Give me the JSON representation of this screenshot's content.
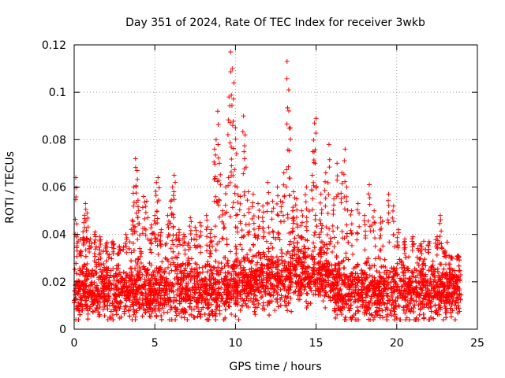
{
  "chart_data": {
    "type": "scatter",
    "title": "Day 351 of 2024, Rate Of TEC Index for receiver 3wkb",
    "xlabel": "GPS time / hours",
    "ylabel": "ROTI / TECUs",
    "xlim": [
      0,
      25
    ],
    "ylim": [
      0,
      0.12
    ],
    "xticks": [
      0,
      5,
      10,
      15,
      20,
      25
    ],
    "xtick_labels": [
      "0",
      "5",
      "10",
      "15",
      "20",
      "25"
    ],
    "yticks": [
      0,
      0.02,
      0.04,
      0.06,
      0.08,
      0.1,
      0.12
    ],
    "ytick_labels": [
      "0",
      "0.02",
      "0.04",
      "0.06",
      "0.08",
      "0.1",
      "0.12"
    ],
    "grid": true,
    "marker": "plus",
    "color": "#ff0000",
    "series": [
      {
        "points": [
          [
            0.1,
            0.064
          ],
          [
            0.2,
            0.04
          ],
          [
            0.4,
            0.033
          ],
          [
            0.6,
            0.045
          ],
          [
            0.7,
            0.053
          ],
          [
            0.8,
            0.049
          ],
          [
            1.0,
            0.038
          ],
          [
            1.3,
            0.041
          ],
          [
            1.6,
            0.039
          ],
          [
            2.0,
            0.036
          ],
          [
            2.4,
            0.037
          ],
          [
            2.8,
            0.035
          ],
          [
            3.2,
            0.04
          ],
          [
            3.6,
            0.046
          ],
          [
            3.7,
            0.06
          ],
          [
            3.8,
            0.072
          ],
          [
            3.9,
            0.067
          ],
          [
            4.0,
            0.05
          ],
          [
            4.3,
            0.056
          ],
          [
            4.5,
            0.054
          ],
          [
            4.8,
            0.044
          ],
          [
            5.0,
            0.048
          ],
          [
            5.1,
            0.062
          ],
          [
            5.2,
            0.064
          ],
          [
            5.4,
            0.042
          ],
          [
            5.8,
            0.048
          ],
          [
            6.0,
            0.054
          ],
          [
            6.1,
            0.06
          ],
          [
            6.2,
            0.065
          ],
          [
            6.5,
            0.042
          ],
          [
            6.8,
            0.04
          ],
          [
            7.2,
            0.047
          ],
          [
            7.5,
            0.043
          ],
          [
            7.8,
            0.045
          ],
          [
            8.2,
            0.048
          ],
          [
            8.5,
            0.042
          ],
          [
            8.7,
            0.076
          ],
          [
            8.8,
            0.08
          ],
          [
            8.9,
            0.092
          ],
          [
            9.0,
            0.07
          ],
          [
            9.2,
            0.05
          ],
          [
            9.4,
            0.06
          ],
          [
            9.6,
            0.098
          ],
          [
            9.7,
            0.117
          ],
          [
            9.8,
            0.11
          ],
          [
            9.9,
            0.104
          ],
          [
            10.0,
            0.085
          ],
          [
            10.1,
            0.06
          ],
          [
            10.3,
            0.056
          ],
          [
            10.5,
            0.09
          ],
          [
            10.6,
            0.082
          ],
          [
            10.8,
            0.058
          ],
          [
            11.1,
            0.057
          ],
          [
            11.4,
            0.053
          ],
          [
            11.7,
            0.052
          ],
          [
            12.0,
            0.062
          ],
          [
            12.3,
            0.054
          ],
          [
            12.6,
            0.06
          ],
          [
            12.8,
            0.054
          ],
          [
            13.0,
            0.066
          ],
          [
            13.2,
            0.113
          ],
          [
            13.3,
            0.101
          ],
          [
            13.4,
            0.085
          ],
          [
            13.6,
            0.058
          ],
          [
            13.8,
            0.055
          ],
          [
            14.1,
            0.05
          ],
          [
            14.4,
            0.06
          ],
          [
            14.8,
            0.075
          ],
          [
            14.9,
            0.087
          ],
          [
            15.0,
            0.089
          ],
          [
            15.3,
            0.057
          ],
          [
            15.6,
            0.066
          ],
          [
            15.8,
            0.078
          ],
          [
            16.1,
            0.055
          ],
          [
            16.3,
            0.07
          ],
          [
            16.6,
            0.066
          ],
          [
            16.8,
            0.076
          ],
          [
            16.9,
            0.06
          ],
          [
            17.2,
            0.05
          ],
          [
            17.6,
            0.053
          ],
          [
            18.0,
            0.048
          ],
          [
            18.3,
            0.061
          ],
          [
            18.6,
            0.05
          ],
          [
            19.0,
            0.047
          ],
          [
            19.5,
            0.057
          ],
          [
            19.8,
            0.052
          ],
          [
            20.1,
            0.042
          ],
          [
            20.5,
            0.038
          ],
          [
            21.0,
            0.039
          ],
          [
            21.5,
            0.036
          ],
          [
            22.0,
            0.037
          ],
          [
            22.5,
            0.039
          ],
          [
            22.7,
            0.048
          ],
          [
            23.0,
            0.033
          ],
          [
            23.4,
            0.03
          ],
          [
            23.8,
            0.031
          ]
        ]
      }
    ]
  }
}
